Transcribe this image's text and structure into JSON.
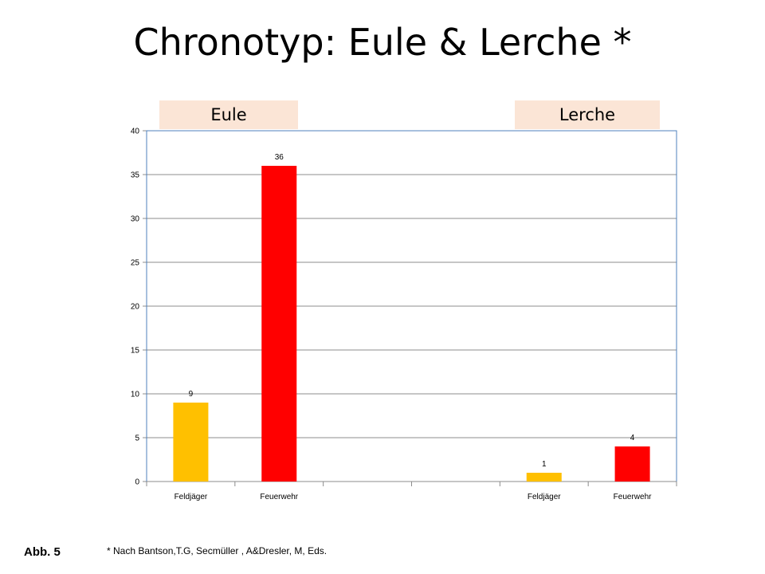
{
  "title": "Chronotyp: Eule & Lerche *",
  "group_labels": [
    "Eule",
    "Lerche"
  ],
  "footnote": "* Nach Bantson,T.G, Secmüller , A&Dresler, M, Eds.",
  "figure_label": "Abb. 5",
  "colors": {
    "feldjaeger": "#ffc000",
    "feuerwehr": "#ff0000",
    "group_label_bg": "#fbe5d6",
    "plot_border": "#4f81bd"
  },
  "chart_data": {
    "type": "bar",
    "categories": [
      "Feldjäger",
      "Feuerwehr",
      "",
      "",
      "Feldjäger",
      "Feuerwehr"
    ],
    "values": [
      9,
      36,
      null,
      null,
      1,
      4
    ],
    "bar_colors": [
      "#ffc000",
      "#ff0000",
      null,
      null,
      "#ffc000",
      "#ff0000"
    ],
    "data_labels": [
      "9",
      "36",
      "",
      "",
      "1",
      "4"
    ],
    "ylim": [
      0,
      40
    ],
    "yticks": [
      0,
      5,
      10,
      15,
      20,
      25,
      30,
      35,
      40
    ],
    "grid": true,
    "legend": "none",
    "xlabel": "",
    "ylabel": ""
  }
}
